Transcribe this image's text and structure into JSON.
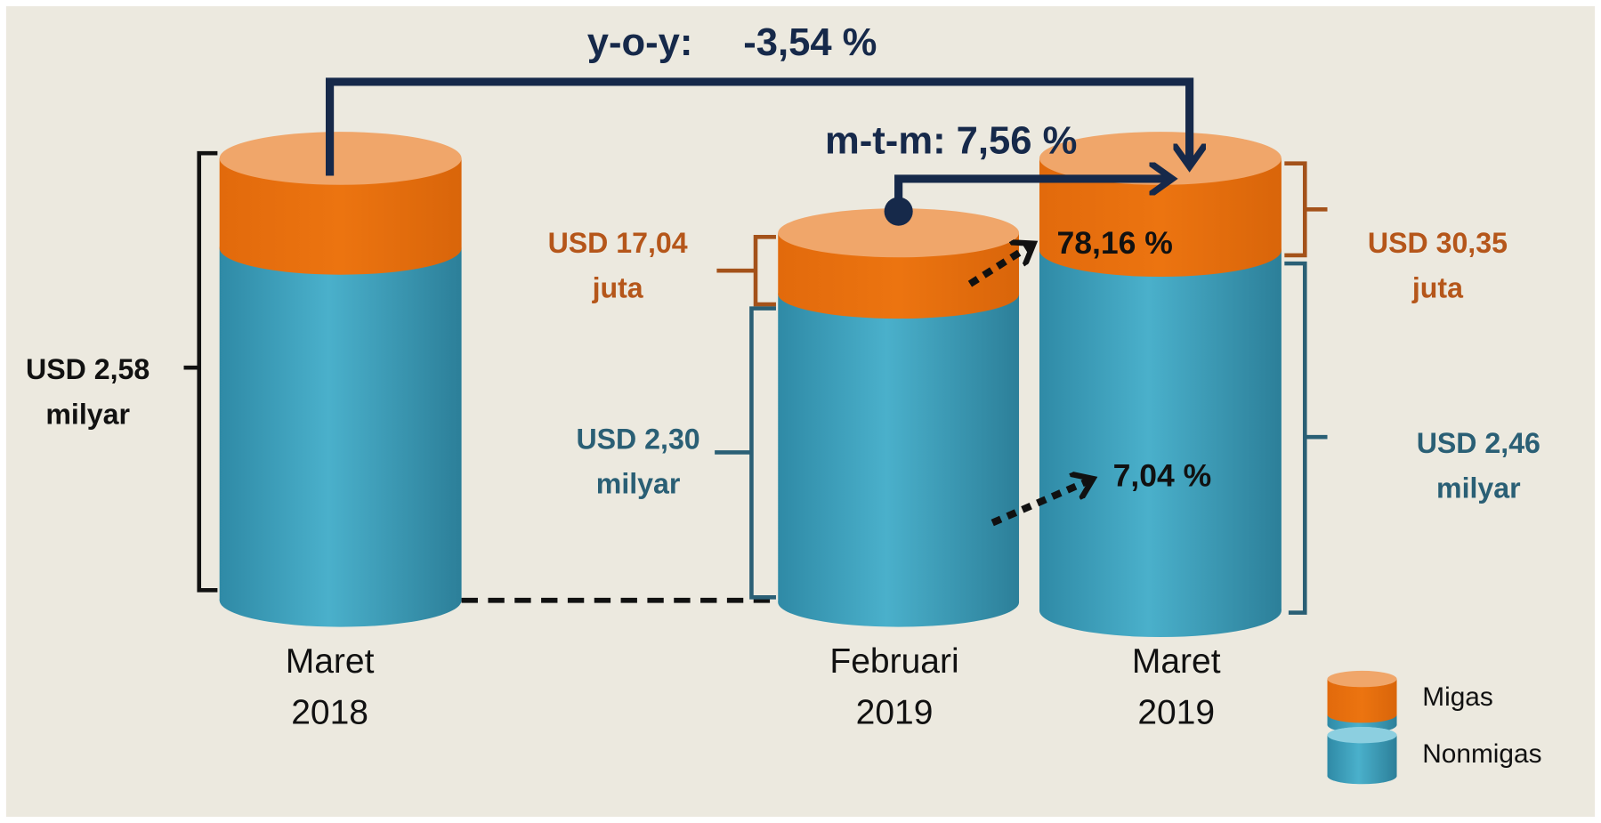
{
  "yoy": {
    "label": "y-o-y:",
    "value": "-3,54 %"
  },
  "mtm": "m-t-m: 7,56 %",
  "columns": [
    {
      "name": [
        "Maret",
        "2018"
      ],
      "total": [
        "USD 2,58",
        "milyar"
      ]
    },
    {
      "name": [
        "Februari",
        "2019"
      ],
      "migas": [
        "USD 17,04",
        "juta"
      ],
      "nonmigas": [
        "USD 2,30",
        "milyar"
      ]
    },
    {
      "name": [
        "Maret",
        "2019"
      ],
      "migas": [
        "USD 30,35",
        "juta"
      ],
      "nonmigas": [
        "USD 2,46",
        "milyar"
      ]
    }
  ],
  "growth": {
    "migas": "78,16 %",
    "nonmigas": "7,04 %"
  },
  "legend": [
    "Migas",
    "Nonmigas"
  ]
}
